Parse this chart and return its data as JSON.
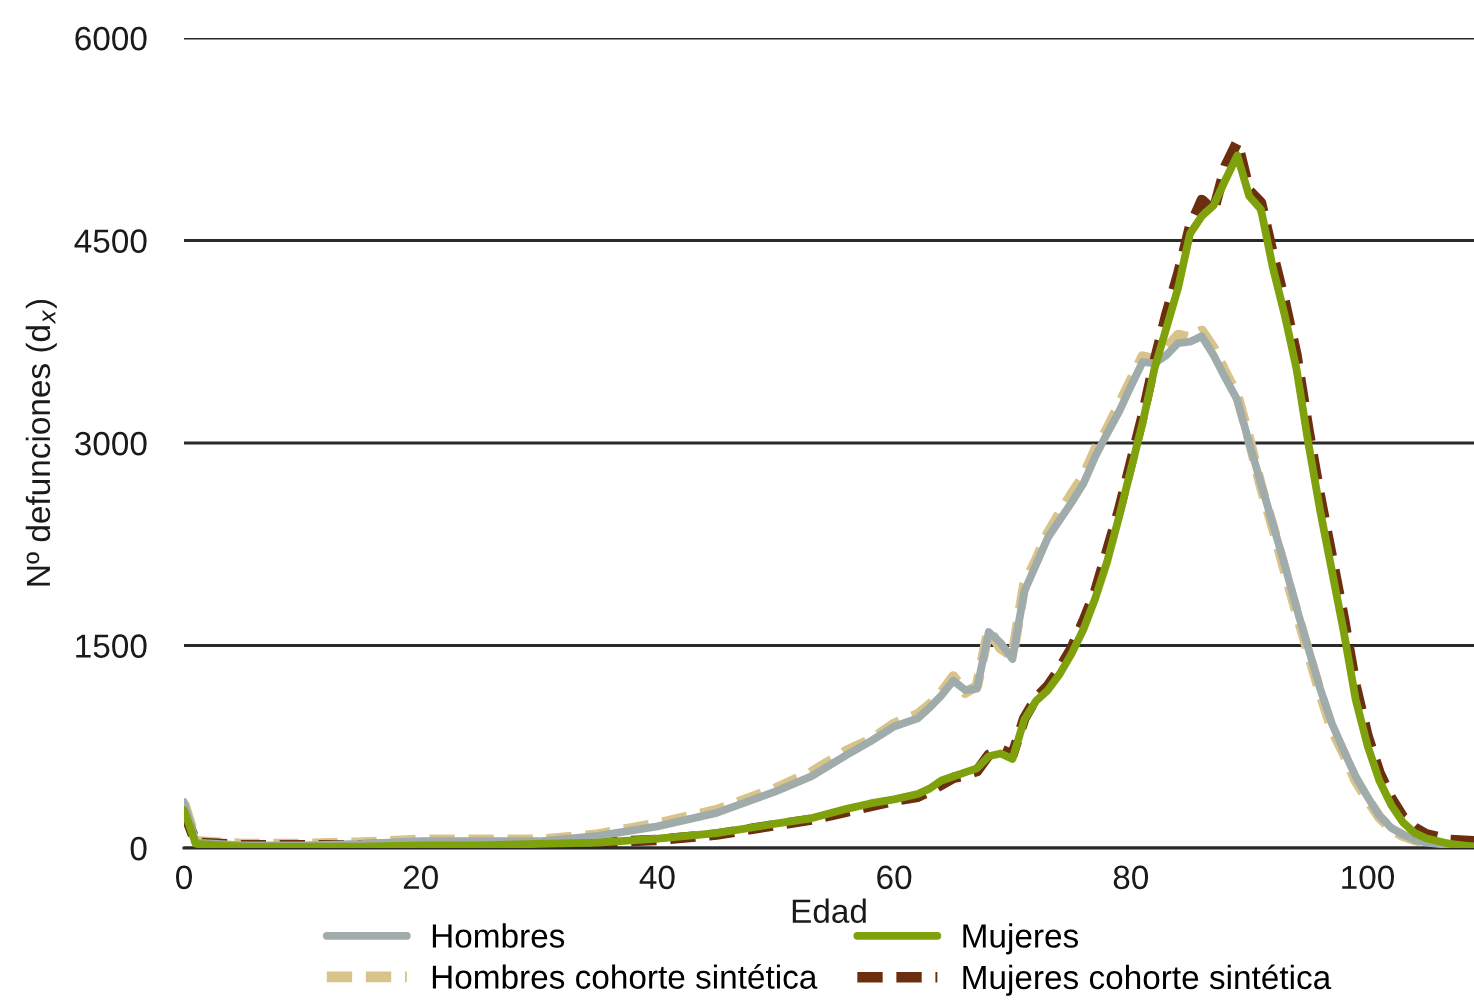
{
  "chart_data": {
    "type": "line",
    "xlabel": "Edad",
    "ylabel": "Nº defunciones (d$_{x}$)",
    "x": [
      0,
      1,
      5,
      10,
      15,
      20,
      25,
      30,
      35,
      40,
      45,
      50,
      53,
      56,
      58,
      60,
      62,
      63,
      64,
      65,
      66,
      67,
      68,
      69,
      70,
      71,
      72,
      73,
      74,
      75,
      76,
      77,
      78,
      79,
      80,
      81,
      82,
      83,
      84,
      85,
      86,
      87,
      88,
      89,
      90,
      91,
      92,
      93,
      94,
      95,
      96,
      97,
      98,
      99,
      100,
      101,
      102,
      103,
      104,
      105,
      107,
      109
    ],
    "series": [
      {
        "name": "Hombres",
        "color": "#a0abab",
        "line_style": "solid",
        "values": [
          340,
          40,
          20,
          20,
          30,
          50,
          50,
          50,
          90,
          160,
          260,
          420,
          530,
          690,
          790,
          900,
          960,
          1040,
          1130,
          1240,
          1170,
          1180,
          1600,
          1520,
          1400,
          1900,
          2100,
          2300,
          2430,
          2560,
          2700,
          2900,
          3070,
          3230,
          3420,
          3600,
          3590,
          3650,
          3740,
          3750,
          3790,
          3650,
          3480,
          3320,
          3000,
          2700,
          2400,
          2100,
          1780,
          1480,
          1180,
          920,
          720,
          530,
          380,
          240,
          150,
          100,
          60,
          40,
          20,
          10
        ]
      },
      {
        "name": "Mujeres",
        "color": "#7fa10c",
        "line_style": "solid",
        "values": [
          280,
          30,
          10,
          10,
          10,
          20,
          20,
          30,
          40,
          70,
          110,
          180,
          220,
          290,
          330,
          360,
          400,
          440,
          500,
          530,
          560,
          590,
          680,
          700,
          660,
          950,
          1090,
          1170,
          1290,
          1440,
          1620,
          1850,
          2120,
          2450,
          2800,
          3150,
          3550,
          3850,
          4150,
          4550,
          4680,
          4760,
          4950,
          5130,
          4830,
          4730,
          4300,
          3950,
          3550,
          3000,
          2500,
          2050,
          1600,
          1100,
          760,
          500,
          320,
          190,
          110,
          70,
          30,
          10
        ]
      },
      {
        "name": "Hombres cohorte sintética",
        "color": "#d8c48a",
        "line_style": "dashed",
        "values": [
          330,
          50,
          30,
          30,
          40,
          60,
          60,
          60,
          100,
          180,
          280,
          440,
          560,
          720,
          800,
          920,
          990,
          1060,
          1150,
          1270,
          1150,
          1200,
          1620,
          1480,
          1420,
          1950,
          2130,
          2330,
          2480,
          2620,
          2750,
          2950,
          3100,
          3280,
          3460,
          3640,
          3620,
          3700,
          3800,
          3780,
          3830,
          3700,
          3520,
          3350,
          3030,
          2680,
          2380,
          2060,
          1750,
          1450,
          1150,
          880,
          700,
          500,
          360,
          230,
          140,
          90,
          60,
          40,
          20,
          10
        ]
      },
      {
        "name": "Mujeres cohorte sintética",
        "color": "#6b2e0e",
        "line_style": "dashed",
        "values": [
          270,
          40,
          20,
          20,
          20,
          30,
          30,
          30,
          40,
          60,
          100,
          170,
          210,
          270,
          310,
          350,
          380,
          420,
          470,
          520,
          540,
          570,
          690,
          730,
          690,
          960,
          1110,
          1200,
          1330,
          1480,
          1680,
          1900,
          2200,
          2500,
          2850,
          3200,
          3600,
          3950,
          4250,
          4600,
          4800,
          4720,
          5050,
          5230,
          4870,
          4780,
          4400,
          4050,
          3650,
          3100,
          2600,
          2150,
          1700,
          1200,
          830,
          560,
          370,
          230,
          150,
          100,
          60,
          50
        ]
      }
    ],
    "xlim": [
      0,
      109
    ],
    "xticks": [
      0,
      20,
      40,
      60,
      80,
      100
    ],
    "ylim": [
      0,
      6000
    ],
    "yticks": [
      0,
      1500,
      3000,
      4500,
      6000
    ],
    "grid": "y",
    "legend": "bottom",
    "marker": "none"
  }
}
